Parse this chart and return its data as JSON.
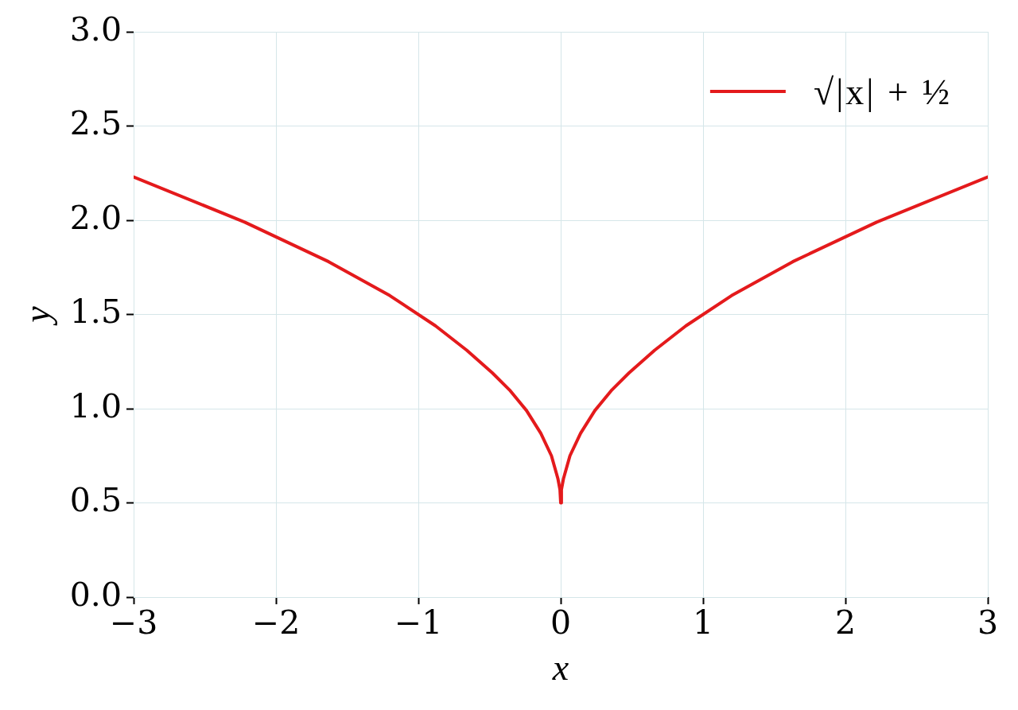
{
  "chart_data": {
    "type": "line",
    "xlabel": "x",
    "ylabel": "y",
    "x": [
      -3,
      -2.22,
      -1.63,
      -1.2,
      -0.88,
      -0.66,
      -0.48,
      -0.36,
      -0.24,
      -0.14,
      -0.065,
      -0.02,
      -0.005,
      0,
      0.005,
      0.02,
      0.065,
      0.14,
      0.24,
      0.36,
      0.48,
      0.66,
      0.88,
      1.2,
      1.63,
      2.22,
      3
    ],
    "series": [
      {
        "name": "√|x| + ½",
        "color": "#e41a1c",
        "values": [
          2.23,
          1.99,
          1.78,
          1.6,
          1.44,
          1.31,
          1.19,
          1.1,
          0.99,
          0.87,
          0.75,
          0.63,
          0.57,
          0.5,
          0.57,
          0.63,
          0.75,
          0.87,
          0.99,
          1.1,
          1.19,
          1.31,
          1.44,
          1.6,
          1.78,
          1.99,
          2.23
        ]
      }
    ],
    "xlim": [
      -3,
      3
    ],
    "xticks": [
      {
        "value": -3,
        "label": "−3"
      },
      {
        "value": -2,
        "label": "−2"
      },
      {
        "value": -1,
        "label": "−1"
      },
      0,
      1,
      2,
      3
    ],
    "ylim": [
      0,
      3
    ],
    "yticks": [
      {
        "value": 0,
        "label": "0.0"
      },
      0.5,
      {
        "value": 1,
        "label": "1.0"
      },
      1.5,
      {
        "value": 2,
        "label": "2.0"
      },
      2.5,
      {
        "value": 3,
        "label": "3.0"
      }
    ],
    "grid": true,
    "legend": "top right",
    "marker": "none",
    "line_style": "solid"
  }
}
